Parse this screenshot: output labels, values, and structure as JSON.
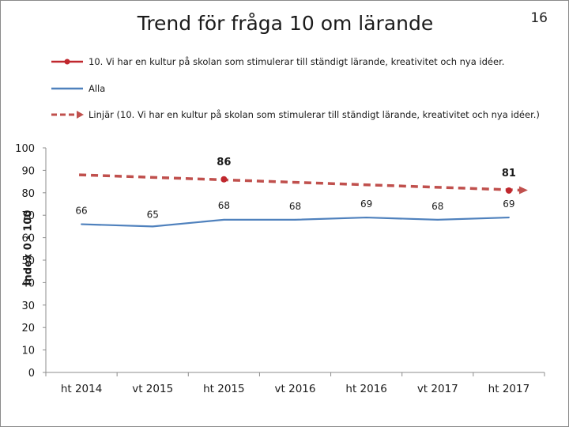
{
  "page": {
    "number": "16"
  },
  "chart_data": {
    "type": "line",
    "title": "Trend för fråga 10 om lärande",
    "xlabel": "",
    "ylabel": "Index 0 - 100",
    "ylim": [
      0,
      100
    ],
    "yticks": [
      0,
      10,
      20,
      30,
      40,
      50,
      60,
      70,
      80,
      90,
      100
    ],
    "categories": [
      "ht 2014",
      "vt 2015",
      "ht 2015",
      "vt 2016",
      "ht 2016",
      "vt 2017",
      "ht 2017"
    ],
    "series": [
      {
        "name": "10.  Vi har en kultur på skolan som stimulerar till ständigt lärande, kreativitet och nya idéer.",
        "color": "#c0272d",
        "values": [
          null,
          null,
          86,
          null,
          null,
          null,
          81
        ],
        "labels": [
          null,
          null,
          "86",
          null,
          null,
          null,
          "81"
        ]
      },
      {
        "name": "Alla",
        "color": "#4f81bd",
        "values": [
          66,
          65,
          68,
          68,
          69,
          68,
          69
        ],
        "labels": [
          "66",
          "65",
          "68",
          "68",
          "69",
          "68",
          "69"
        ]
      },
      {
        "name": "Linjär (10.  Vi har en kultur på skolan som stimulerar till ständigt lärande, kreativitet och nya idéer.)",
        "color": "#c0504d",
        "style": "dashed-trend",
        "start": 88,
        "end": 81
      }
    ]
  }
}
